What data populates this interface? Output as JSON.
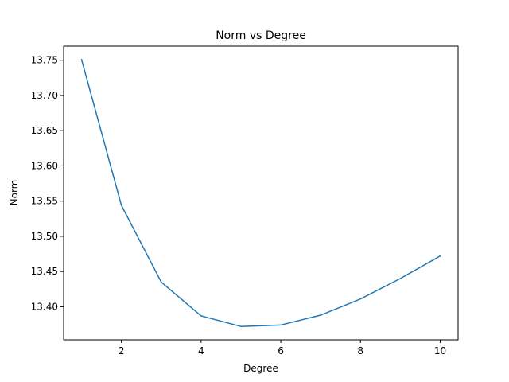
{
  "chart_data": {
    "type": "line",
    "title": "Norm vs Degree",
    "xlabel": "Degree",
    "ylabel": "Norm",
    "xlim": [
      0.55,
      10.45
    ],
    "ylim": [
      13.353,
      13.77
    ],
    "xticks": [
      2,
      4,
      6,
      8,
      10
    ],
    "xtick_labels": [
      "2",
      "4",
      "6",
      "8",
      "10"
    ],
    "yticks": [
      13.4,
      13.45,
      13.5,
      13.55,
      13.6,
      13.65,
      13.7,
      13.75
    ],
    "ytick_labels": [
      "13.40",
      "13.45",
      "13.50",
      "13.55",
      "13.60",
      "13.65",
      "13.70",
      "13.75"
    ],
    "grid": false,
    "series": [
      {
        "color": "#1f77b4",
        "x": [
          1,
          2,
          3,
          4,
          5,
          6,
          7,
          8,
          9,
          10
        ],
        "y": [
          13.751,
          13.544,
          13.435,
          13.387,
          13.372,
          13.374,
          13.388,
          13.411,
          13.44,
          13.472
        ]
      }
    ]
  }
}
